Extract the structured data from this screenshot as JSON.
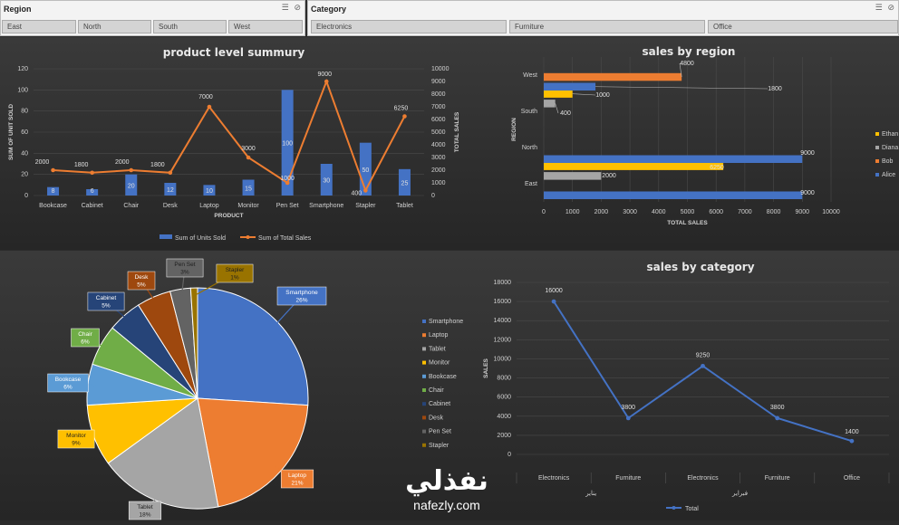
{
  "slicers": {
    "region": {
      "title": "Region",
      "items": [
        "East",
        "North",
        "South",
        "West"
      ]
    },
    "category": {
      "title": "Category",
      "items": [
        "Electronics",
        "Furniture",
        "Office"
      ]
    }
  },
  "charts": {
    "product": {
      "title": "product level summury",
      "xlabel": "PRODUCT",
      "ylabel_left": "SUM OF UNIT SOLD",
      "ylabel_right": "TOTAL SALES",
      "legend": [
        "Sum of Units Sold",
        "Sum of Total Sales"
      ]
    },
    "region": {
      "title": "sales by region",
      "xlabel": "TOTAL SALES",
      "ylabel": "REGION"
    },
    "pie": {
      "title": ""
    },
    "category": {
      "title": "sales by category",
      "ylabel": "SALES",
      "legend": "Total",
      "groups": [
        "يناير",
        "فبراير"
      ]
    }
  },
  "watermark": {
    "arabic": "نفذلي",
    "latin": "nafezly.com"
  },
  "colors": {
    "blue": "#4472c4",
    "orange": "#ed7d31",
    "gray": "#a5a5a5",
    "yellow": "#ffc000",
    "lightblue": "#5b9bd5",
    "green": "#70ad47",
    "navy": "#264478",
    "brown": "#9e480e",
    "darkgray": "#636363",
    "olive": "#997300"
  },
  "chart_data": [
    {
      "type": "bar",
      "title": "product level summury",
      "categories": [
        "Bookcase",
        "Cabinet",
        "Chair",
        "Desk",
        "Laptop",
        "Monitor",
        "Pen Set",
        "Smartphone",
        "Stapler",
        "Tablet"
      ],
      "series": [
        {
          "name": "Sum of Units Sold",
          "type": "bar",
          "axis": "left",
          "values": [
            8,
            6,
            20,
            12,
            10,
            15,
            100,
            30,
            50,
            25
          ]
        },
        {
          "name": "Sum of Total Sales",
          "type": "line",
          "axis": "right",
          "values": [
            2000,
            1800,
            2000,
            1800,
            7000,
            3000,
            1000,
            9000,
            400,
            6250
          ]
        }
      ],
      "ylim_left": [
        0,
        120
      ],
      "yticks_left": [
        0,
        20,
        40,
        60,
        80,
        100,
        120
      ],
      "ylim_right": [
        0,
        10000
      ],
      "yticks_right": [
        0,
        1000,
        2000,
        3000,
        4000,
        5000,
        6000,
        7000,
        8000,
        9000,
        10000
      ],
      "xlabel": "PRODUCT",
      "ylabel": "SUM OF UNIT SOLD",
      "ylabel_right": "TOTAL SALES",
      "legend": "bottom"
    },
    {
      "type": "bar",
      "orientation": "horizontal",
      "title": "sales by region",
      "categories": [
        "East",
        "North",
        "South",
        "West"
      ],
      "series": [
        {
          "name": "Alice",
          "values": [
            9000,
            9000,
            null,
            1800
          ]
        },
        {
          "name": "Bob",
          "values": [
            null,
            null,
            null,
            4800
          ]
        },
        {
          "name": "Diana",
          "values": [
            2000,
            null,
            400,
            null
          ]
        },
        {
          "name": "Ethan",
          "values": [
            6250,
            null,
            1000,
            null
          ]
        }
      ],
      "xlim": [
        0,
        10000
      ],
      "xticks": [
        0,
        1000,
        2000,
        3000,
        4000,
        5000,
        6000,
        7000,
        8000,
        9000,
        10000
      ],
      "xlabel": "TOTAL SALES",
      "ylabel": "REGION",
      "legend": "right"
    },
    {
      "type": "pie",
      "labels": [
        "Smartphone",
        "Laptop",
        "Tablet",
        "Monitor",
        "Bookcase",
        "Chair",
        "Cabinet",
        "Desk",
        "Pen Set",
        "Stapler"
      ],
      "values": [
        26,
        21,
        18,
        9,
        6,
        6,
        5,
        5,
        3,
        1
      ],
      "percent_labels": [
        "26%",
        "21%",
        "18%",
        "9%",
        "6%",
        "6%",
        "5%",
        "5%",
        "3%",
        "1%"
      ],
      "legend": "right"
    },
    {
      "type": "line",
      "title": "sales by category",
      "categories": [
        "Electronics",
        "Furniture",
        "Electronics",
        "Furniture",
        "Office"
      ],
      "groups": [
        {
          "name": "يناير",
          "span": 2
        },
        {
          "name": "فبراير",
          "span": 2
        },
        {
          "name": "",
          "span": 1
        }
      ],
      "series": [
        {
          "name": "Total",
          "values": [
            16000,
            3800,
            9250,
            3800,
            1400
          ]
        }
      ],
      "ylim": [
        0,
        18000
      ],
      "yticks": [
        0,
        2000,
        4000,
        6000,
        8000,
        10000,
        12000,
        14000,
        16000,
        18000
      ],
      "ylabel": "SALES",
      "legend": "bottom"
    }
  ]
}
